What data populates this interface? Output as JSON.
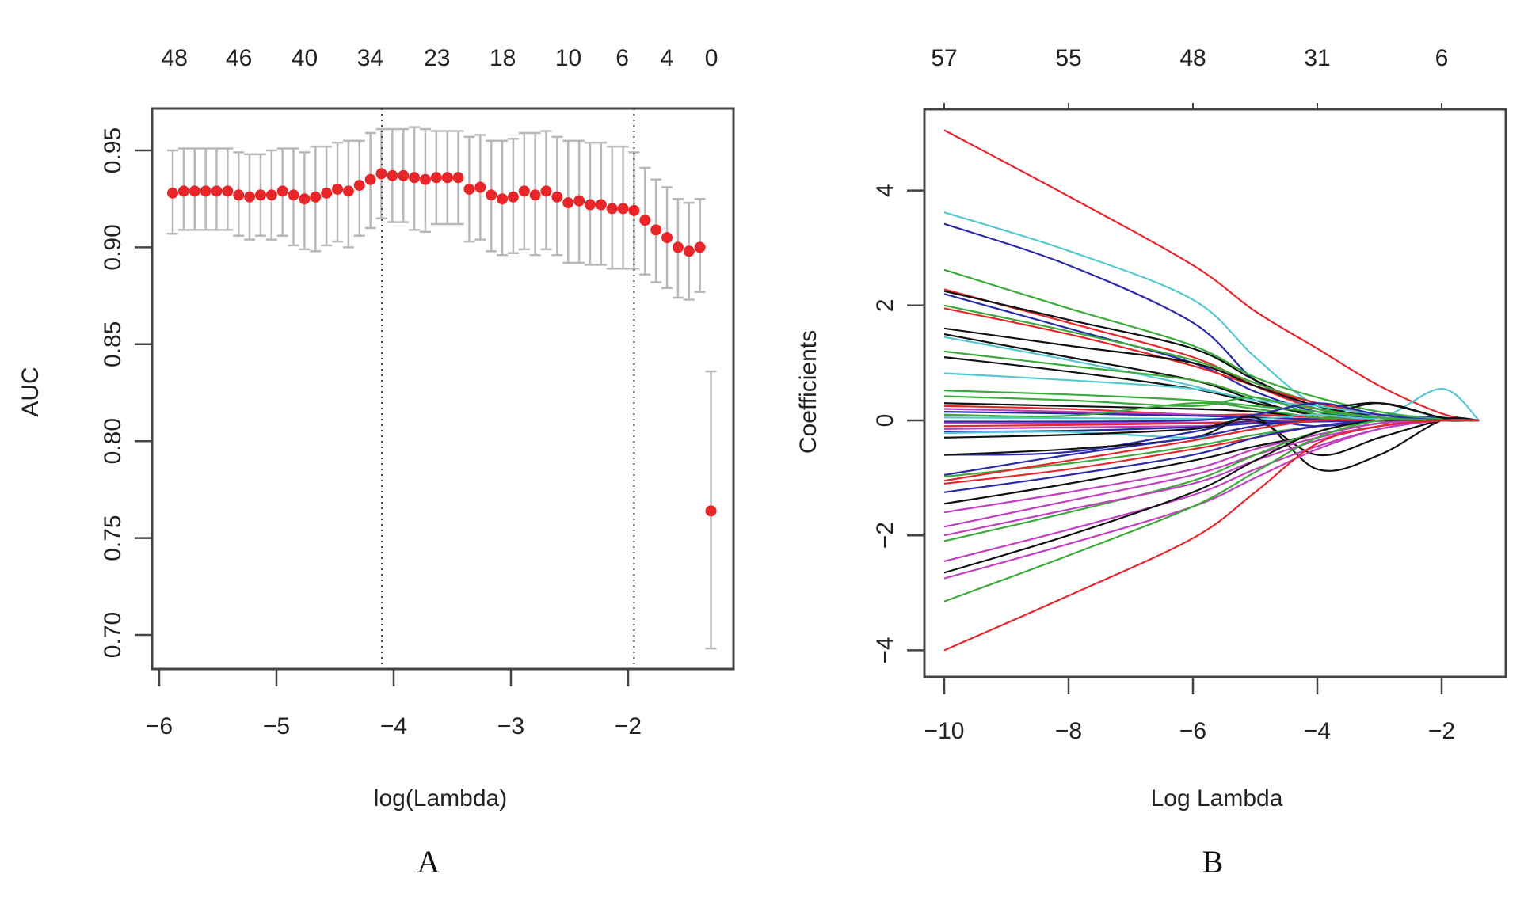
{
  "chart_data": [
    {
      "panel": "A",
      "type": "scatter",
      "subtype": "cross-validation error-bar plot",
      "panel_label": "A",
      "xlabel": "log(Lambda)",
      "ylabel": "AUC",
      "xlim": [
        -6.1,
        -1.1
      ],
      "ylim": [
        0.685,
        0.965
      ],
      "x_ticks": [
        -6,
        -5,
        -4,
        -3,
        -2
      ],
      "x_tick_labels": [
        "−6",
        "−5",
        "−4",
        "−3",
        "−2"
      ],
      "y_ticks": [
        0.7,
        0.75,
        0.8,
        0.85,
        0.9,
        0.95
      ],
      "y_tick_labels": [
        "0.70",
        "0.75",
        "0.80",
        "0.85",
        "0.90",
        "0.95"
      ],
      "top_axis": {
        "positions": [
          -5.87,
          -5.32,
          -4.76,
          -4.2,
          -3.63,
          -3.07,
          -2.51,
          -2.05,
          -1.67,
          -1.29
        ],
        "labels": [
          "48",
          "46",
          "40",
          "34",
          "23",
          "18",
          "10",
          "6",
          "4",
          "0"
        ]
      },
      "vlines": [
        {
          "name": "lambda-min",
          "x": -4.1
        },
        {
          "name": "lambda-1se",
          "x": -1.95
        }
      ],
      "point_color": "#e8262a",
      "errorbar_color": "#b8b8b8",
      "x_start": -5.885,
      "x_step": 0.0937,
      "auc": [
        0.928,
        0.929,
        0.929,
        0.929,
        0.929,
        0.929,
        0.927,
        0.926,
        0.927,
        0.927,
        0.929,
        0.927,
        0.925,
        0.926,
        0.928,
        0.93,
        0.929,
        0.932,
        0.935,
        0.938,
        0.937,
        0.937,
        0.936,
        0.935,
        0.936,
        0.936,
        0.936,
        0.93,
        0.931,
        0.927,
        0.925,
        0.926,
        0.929,
        0.927,
        0.929,
        0.926,
        0.923,
        0.924,
        0.922,
        0.922,
        0.92,
        0.92,
        0.919,
        0.914,
        0.909,
        0.905,
        0.9,
        0.898,
        0.9,
        0.764
      ],
      "upper": [
        0.95,
        0.951,
        0.951,
        0.951,
        0.951,
        0.951,
        0.949,
        0.948,
        0.948,
        0.95,
        0.951,
        0.951,
        0.949,
        0.952,
        0.952,
        0.954,
        0.955,
        0.955,
        0.959,
        0.961,
        0.961,
        0.961,
        0.962,
        0.961,
        0.96,
        0.96,
        0.96,
        0.957,
        0.958,
        0.955,
        0.955,
        0.956,
        0.959,
        0.959,
        0.96,
        0.957,
        0.955,
        0.955,
        0.954,
        0.954,
        0.952,
        0.952,
        0.949,
        0.941,
        0.935,
        0.931,
        0.925,
        0.923,
        0.925,
        0.836
      ],
      "lower": [
        0.907,
        0.909,
        0.909,
        0.909,
        0.909,
        0.909,
        0.906,
        0.904,
        0.906,
        0.904,
        0.906,
        0.901,
        0.899,
        0.898,
        0.901,
        0.903,
        0.9,
        0.906,
        0.91,
        0.915,
        0.913,
        0.913,
        0.909,
        0.908,
        0.912,
        0.912,
        0.912,
        0.903,
        0.904,
        0.898,
        0.896,
        0.897,
        0.899,
        0.896,
        0.899,
        0.896,
        0.892,
        0.892,
        0.891,
        0.891,
        0.889,
        0.889,
        0.889,
        0.886,
        0.882,
        0.879,
        0.874,
        0.873,
        0.877,
        0.693
      ]
    },
    {
      "panel": "B",
      "type": "line",
      "subtype": "coefficient path plot",
      "panel_label": "B",
      "xlabel": "Log Lambda",
      "ylabel": "Coefficients",
      "xlim": [
        -10.32,
        -1.0
      ],
      "ylim": [
        -4.35,
        5.4
      ],
      "x_ticks": [
        -10,
        -8,
        -6,
        -4,
        -2
      ],
      "x_tick_labels": [
        "−10",
        "−8",
        "−6",
        "−4",
        "−2"
      ],
      "y_ticks": [
        -4,
        -2,
        0,
        2,
        4
      ],
      "y_tick_labels": [
        "−4",
        "−2",
        "0",
        "2",
        "4"
      ],
      "top_axis": {
        "positions": [
          -10,
          -8,
          -6,
          -4,
          -2
        ],
        "labels": [
          "57",
          "55",
          "48",
          "31",
          "6"
        ]
      },
      "knot_x": [
        -10,
        -8,
        -6,
        -5,
        -4,
        -3,
        -2,
        -1.4
      ],
      "series": [
        {
          "color": "#e8262a",
          "y": [
            5.05,
            3.9,
            2.7,
            1.9,
            1.25,
            0.6,
            0.12,
            0
          ]
        },
        {
          "color": "#54c8d0",
          "y": [
            3.62,
            2.95,
            2.1,
            1.1,
            0.25,
            0.05,
            0.55,
            0
          ]
        },
        {
          "color": "#2a2aa8",
          "y": [
            3.42,
            2.7,
            1.7,
            0.7,
            0.2,
            0.1,
            0.05,
            0
          ]
        },
        {
          "color": "#3aaa3a",
          "y": [
            2.62,
            1.95,
            1.3,
            0.75,
            0.4,
            0.15,
            0.02,
            0
          ]
        },
        {
          "color": "#e8262a",
          "y": [
            2.28,
            1.7,
            1.1,
            0.6,
            0.2,
            0.05,
            0.0,
            0
          ]
        },
        {
          "color": "#111111",
          "y": [
            2.25,
            1.75,
            1.25,
            0.7,
            0.25,
            0.3,
            0.05,
            0
          ]
        },
        {
          "color": "#2a2aa8",
          "y": [
            2.2,
            1.6,
            1.0,
            0.5,
            0.15,
            0.05,
            0.0,
            0
          ]
        },
        {
          "color": "#3aaa3a",
          "y": [
            2.0,
            1.55,
            1.05,
            0.65,
            0.3,
            0.1,
            0.0,
            0
          ]
        },
        {
          "color": "#e8262a",
          "y": [
            1.95,
            1.5,
            0.95,
            0.6,
            0.3,
            0.1,
            0.0,
            0
          ]
        },
        {
          "color": "#111111",
          "y": [
            1.6,
            1.3,
            1.0,
            0.6,
            0.25,
            0.05,
            0.0,
            0
          ]
        },
        {
          "color": "#111111",
          "y": [
            1.5,
            1.1,
            0.7,
            0.35,
            0.1,
            0.3,
            0.05,
            0
          ]
        },
        {
          "color": "#54c8d0",
          "y": [
            1.45,
            1.05,
            0.6,
            0.3,
            0.1,
            0.0,
            0.0,
            0
          ]
        },
        {
          "color": "#3aaa3a",
          "y": [
            1.2,
            0.95,
            0.7,
            0.4,
            0.2,
            0.05,
            0.0,
            0
          ]
        },
        {
          "color": "#111111",
          "y": [
            1.1,
            0.85,
            0.55,
            0.3,
            0.1,
            0.0,
            0.0,
            0
          ]
        },
        {
          "color": "#54c8d0",
          "y": [
            0.82,
            0.7,
            0.55,
            0.35,
            0.25,
            0.1,
            0.0,
            0
          ]
        },
        {
          "color": "#3aaa3a",
          "y": [
            0.52,
            0.45,
            0.35,
            0.25,
            0.15,
            0.05,
            0.0,
            0
          ]
        },
        {
          "color": "#3aaa3a",
          "y": [
            0.42,
            0.35,
            0.25,
            0.4,
            0.1,
            0.0,
            0.0,
            0
          ]
        },
        {
          "color": "#111111",
          "y": [
            0.3,
            0.25,
            0.2,
            0.15,
            0.05,
            0.0,
            0.0,
            0
          ]
        },
        {
          "color": "#e8262a",
          "y": [
            0.25,
            0.2,
            0.1,
            0.1,
            0.05,
            0.0,
            0.0,
            0
          ]
        },
        {
          "color": "#c040c0",
          "y": [
            0.2,
            0.15,
            0.1,
            0.05,
            0.02,
            0.0,
            0.0,
            0
          ]
        },
        {
          "color": "#2a2aa8",
          "y": [
            0.15,
            0.12,
            0.08,
            0.05,
            0.02,
            0.0,
            0.0,
            0
          ]
        },
        {
          "color": "#3aaa3a",
          "y": [
            0.1,
            0.08,
            0.3,
            0.2,
            0.05,
            0.0,
            0.0,
            0
          ]
        },
        {
          "color": "#54c8d0",
          "y": [
            0.05,
            0.04,
            0.03,
            0.02,
            0.1,
            0.0,
            0.0,
            0
          ]
        },
        {
          "color": "#2a2aa8",
          "y": [
            -0.02,
            -0.02,
            0.0,
            0.1,
            0.3,
            0.1,
            0.0,
            0
          ]
        },
        {
          "color": "#c040c0",
          "y": [
            -0.05,
            -0.05,
            -0.04,
            -0.03,
            -0.02,
            -0.01,
            0.0,
            0
          ]
        },
        {
          "color": "#e8262a",
          "y": [
            -0.1,
            -0.08,
            -0.05,
            -0.02,
            0.0,
            0.0,
            0.0,
            0
          ]
        },
        {
          "color": "#c040c0",
          "y": [
            -0.15,
            -0.12,
            -0.1,
            -0.05,
            0.0,
            0.0,
            0.0,
            0
          ]
        },
        {
          "color": "#2a2aa8",
          "y": [
            -0.2,
            -0.18,
            -0.12,
            -0.05,
            -0.02,
            0.0,
            0.0,
            0
          ]
        },
        {
          "color": "#54c8d0",
          "y": [
            -0.22,
            -0.2,
            -0.3,
            -0.15,
            0.0,
            0.0,
            0.0,
            0
          ]
        },
        {
          "color": "#111111",
          "y": [
            -0.3,
            -0.25,
            -0.15,
            0.0,
            -0.6,
            -0.3,
            0.0,
            0
          ]
        },
        {
          "color": "#2a2aa8",
          "y": [
            -0.6,
            -0.55,
            -0.2,
            0.0,
            -0.1,
            0.0,
            0.0,
            0
          ]
        },
        {
          "color": "#111111",
          "y": [
            -0.6,
            -0.5,
            -0.3,
            0.05,
            -0.85,
            -0.6,
            0.0,
            0
          ]
        },
        {
          "color": "#2a2aa8",
          "y": [
            -0.95,
            -0.6,
            -0.3,
            -0.1,
            0.0,
            0.0,
            0.0,
            0
          ]
        },
        {
          "color": "#3aaa3a",
          "y": [
            -0.98,
            -0.75,
            -0.45,
            -0.25,
            -0.1,
            0.0,
            0.0,
            0
          ]
        },
        {
          "color": "#e8262a",
          "y": [
            -1.05,
            -0.7,
            -0.35,
            -0.15,
            0.0,
            0.0,
            0.0,
            0
          ]
        },
        {
          "color": "#e8262a",
          "y": [
            -1.1,
            -0.85,
            -0.5,
            -0.3,
            -0.1,
            0.0,
            0.0,
            0
          ]
        },
        {
          "color": "#2a2aa8",
          "y": [
            -1.25,
            -0.95,
            -0.6,
            -0.3,
            -0.1,
            0.0,
            0.0,
            0
          ]
        },
        {
          "color": "#111111",
          "y": [
            -1.45,
            -1.1,
            -0.7,
            -0.45,
            -0.25,
            -0.05,
            0.0,
            0
          ]
        },
        {
          "color": "#c040c0",
          "y": [
            -1.6,
            -1.25,
            -0.85,
            -0.5,
            -0.25,
            -0.05,
            0.0,
            0
          ]
        },
        {
          "color": "#c040c0",
          "y": [
            -1.85,
            -1.4,
            -0.95,
            -0.6,
            -0.3,
            -0.1,
            0.0,
            0
          ]
        },
        {
          "color": "#3aaa3a",
          "y": [
            -2.1,
            -1.6,
            -1.05,
            -0.6,
            -0.2,
            0.0,
            0.0,
            0
          ]
        },
        {
          "color": "#c040c0",
          "y": [
            -2.0,
            -1.55,
            -1.1,
            -0.7,
            -0.35,
            -0.1,
            0.0,
            0
          ]
        },
        {
          "color": "#c040c0",
          "y": [
            -2.45,
            -1.9,
            -1.3,
            -0.85,
            -0.45,
            -0.15,
            0.0,
            0
          ]
        },
        {
          "color": "#111111",
          "y": [
            -2.65,
            -2.0,
            -1.25,
            -0.7,
            -0.2,
            0.0,
            0.0,
            0
          ]
        },
        {
          "color": "#c040c0",
          "y": [
            -2.75,
            -2.15,
            -1.5,
            -1.0,
            -0.5,
            -0.15,
            0.0,
            0
          ]
        },
        {
          "color": "#3aaa3a",
          "y": [
            -3.15,
            -2.35,
            -1.5,
            -0.9,
            -0.3,
            0.0,
            0.0,
            0
          ]
        },
        {
          "color": "#e8262a",
          "y": [
            -4.0,
            -3.05,
            -2.05,
            -1.25,
            -0.4,
            -0.1,
            0.0,
            0
          ]
        }
      ]
    }
  ]
}
